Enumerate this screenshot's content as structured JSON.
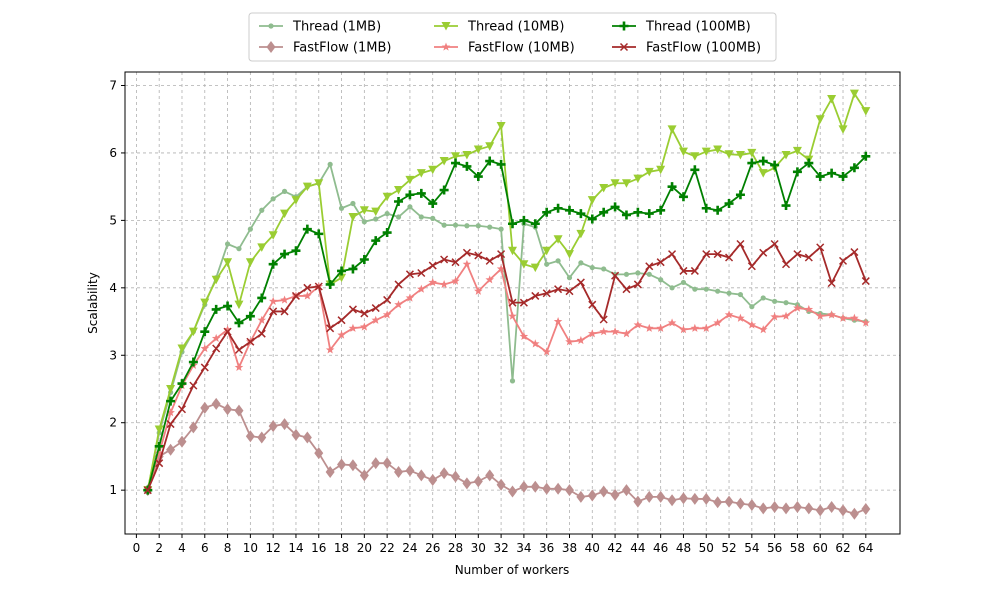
{
  "chart_data": {
    "type": "line",
    "xlabel": "Number of workers",
    "ylabel": "Scalability",
    "xlim": [
      -1,
      67
    ],
    "ylim": [
      0.35,
      7.2
    ],
    "xticks": [
      0,
      2,
      4,
      6,
      8,
      10,
      12,
      14,
      16,
      18,
      20,
      22,
      24,
      26,
      28,
      30,
      32,
      34,
      36,
      38,
      40,
      42,
      44,
      46,
      48,
      50,
      52,
      54,
      56,
      58,
      60,
      62,
      64
    ],
    "yticks": [
      1,
      2,
      3,
      4,
      5,
      6,
      7
    ],
    "grid": true,
    "legend_position": "top-center",
    "x": [
      1,
      2,
      3,
      4,
      5,
      6,
      7,
      8,
      9,
      10,
      11,
      12,
      13,
      14,
      15,
      16,
      17,
      18,
      19,
      20,
      21,
      22,
      23,
      24,
      25,
      26,
      27,
      28,
      29,
      30,
      31,
      32,
      33,
      34,
      35,
      36,
      37,
      38,
      39,
      40,
      41,
      42,
      43,
      44,
      45,
      46,
      47,
      48,
      49,
      50,
      51,
      52,
      53,
      54,
      55,
      56,
      57,
      58,
      59,
      60,
      61,
      62,
      63,
      64
    ],
    "series": [
      {
        "name": "Thread (1MB)",
        "color": "#8fbc8f",
        "marker": "circle",
        "values": [
          1.0,
          1.85,
          2.45,
          3.05,
          3.35,
          3.75,
          4.15,
          4.65,
          4.58,
          4.87,
          5.15,
          5.32,
          5.43,
          5.35,
          5.5,
          5.55,
          5.83,
          5.18,
          5.25,
          4.98,
          5.02,
          5.1,
          5.05,
          5.2,
          5.05,
          5.03,
          4.93,
          4.93,
          4.92,
          4.92,
          4.9,
          4.87,
          2.62,
          4.95,
          4.9,
          4.35,
          4.4,
          4.15,
          4.37,
          4.3,
          4.28,
          4.2,
          4.2,
          4.22,
          4.2,
          4.12,
          4.0,
          4.08,
          3.98,
          3.98,
          3.95,
          3.92,
          3.9,
          3.72,
          3.85,
          3.8,
          3.78,
          3.75,
          3.65,
          3.62,
          3.6,
          3.55,
          3.52,
          3.5
        ]
      },
      {
        "name": "FastFlow (1MB)",
        "color": "#bc8f8f",
        "marker": "diamond",
        "values": [
          1.0,
          1.5,
          1.6,
          1.72,
          1.93,
          2.22,
          2.28,
          2.2,
          2.18,
          1.8,
          1.78,
          1.95,
          1.98,
          1.82,
          1.78,
          1.55,
          1.27,
          1.38,
          1.37,
          1.22,
          1.4,
          1.4,
          1.27,
          1.29,
          1.22,
          1.15,
          1.25,
          1.2,
          1.1,
          1.13,
          1.22,
          1.08,
          0.98,
          1.05,
          1.05,
          1.02,
          1.02,
          1.0,
          0.9,
          0.92,
          0.98,
          0.93,
          1.0,
          0.83,
          0.9,
          0.9,
          0.85,
          0.88,
          0.87,
          0.87,
          0.82,
          0.83,
          0.8,
          0.78,
          0.73,
          0.75,
          0.73,
          0.75,
          0.73,
          0.7,
          0.75,
          0.7,
          0.65,
          0.72
        ]
      },
      {
        "name": "Thread (10MB)",
        "color": "#9acd32",
        "marker": "triangle-down",
        "values": [
          1.0,
          1.9,
          2.5,
          3.1,
          3.35,
          3.78,
          4.12,
          4.38,
          3.75,
          4.38,
          4.6,
          4.78,
          5.1,
          5.3,
          5.5,
          5.55,
          4.05,
          4.15,
          5.05,
          5.15,
          5.13,
          5.35,
          5.45,
          5.6,
          5.7,
          5.75,
          5.88,
          5.95,
          5.97,
          6.05,
          6.1,
          6.4,
          4.55,
          4.35,
          4.3,
          4.55,
          4.72,
          4.5,
          4.8,
          5.3,
          5.48,
          5.55,
          5.55,
          5.62,
          5.72,
          5.75,
          6.35,
          6.02,
          5.95,
          6.02,
          6.05,
          5.98,
          5.97,
          6.0,
          5.7,
          5.78,
          5.97,
          6.03,
          5.9,
          6.5,
          6.8,
          6.35,
          6.88,
          6.62
        ]
      },
      {
        "name": "FastFlow (10MB)",
        "color": "#f08080",
        "marker": "star",
        "values": [
          1.0,
          1.55,
          2.15,
          2.55,
          2.85,
          3.1,
          3.25,
          3.38,
          2.82,
          3.2,
          3.52,
          3.8,
          3.82,
          3.88,
          3.88,
          4.02,
          3.08,
          3.3,
          3.4,
          3.42,
          3.52,
          3.6,
          3.75,
          3.85,
          3.98,
          4.08,
          4.05,
          4.1,
          4.35,
          3.95,
          4.12,
          4.28,
          3.58,
          3.28,
          3.17,
          3.05,
          3.5,
          3.2,
          3.22,
          3.32,
          3.35,
          3.35,
          3.32,
          3.45,
          3.4,
          3.4,
          3.48,
          3.38,
          3.4,
          3.4,
          3.48,
          3.6,
          3.55,
          3.45,
          3.38,
          3.57,
          3.58,
          3.7,
          3.68,
          3.58,
          3.6,
          3.55,
          3.55,
          3.48
        ]
      },
      {
        "name": "Thread (100MB)",
        "color": "#008000",
        "marker": "plus",
        "values": [
          1.0,
          1.65,
          2.32,
          2.58,
          2.9,
          3.35,
          3.68,
          3.73,
          3.48,
          3.58,
          3.85,
          4.35,
          4.5,
          4.55,
          4.87,
          4.8,
          4.05,
          4.25,
          4.28,
          4.42,
          4.7,
          4.82,
          5.28,
          5.38,
          5.4,
          5.25,
          5.45,
          5.85,
          5.8,
          5.65,
          5.88,
          5.83,
          4.95,
          5.0,
          4.95,
          5.12,
          5.18,
          5.15,
          5.1,
          5.02,
          5.12,
          5.2,
          5.08,
          5.12,
          5.1,
          5.15,
          5.5,
          5.35,
          5.75,
          5.18,
          5.15,
          5.25,
          5.38,
          5.85,
          5.88,
          5.82,
          5.22,
          5.72,
          5.85,
          5.65,
          5.7,
          5.65,
          5.78,
          5.95
        ]
      },
      {
        "name": "FastFlow (100MB)",
        "color": "#a52a2a",
        "marker": "x",
        "values": [
          1.0,
          1.4,
          1.98,
          2.2,
          2.55,
          2.82,
          3.1,
          3.35,
          3.08,
          3.2,
          3.32,
          3.65,
          3.65,
          3.88,
          4.0,
          4.02,
          3.4,
          3.52,
          3.68,
          3.62,
          3.7,
          3.82,
          4.05,
          4.2,
          4.22,
          4.33,
          4.42,
          4.38,
          4.52,
          4.48,
          4.4,
          4.5,
          3.78,
          3.78,
          3.88,
          3.92,
          3.98,
          3.95,
          4.08,
          3.75,
          3.53,
          4.18,
          3.98,
          4.05,
          4.32,
          4.38,
          4.5,
          4.25,
          4.25,
          4.5,
          4.5,
          4.45,
          4.65,
          4.32,
          4.52,
          4.65,
          4.35,
          4.5,
          4.45,
          4.6,
          4.07,
          4.4,
          4.53,
          4.1
        ]
      }
    ]
  }
}
